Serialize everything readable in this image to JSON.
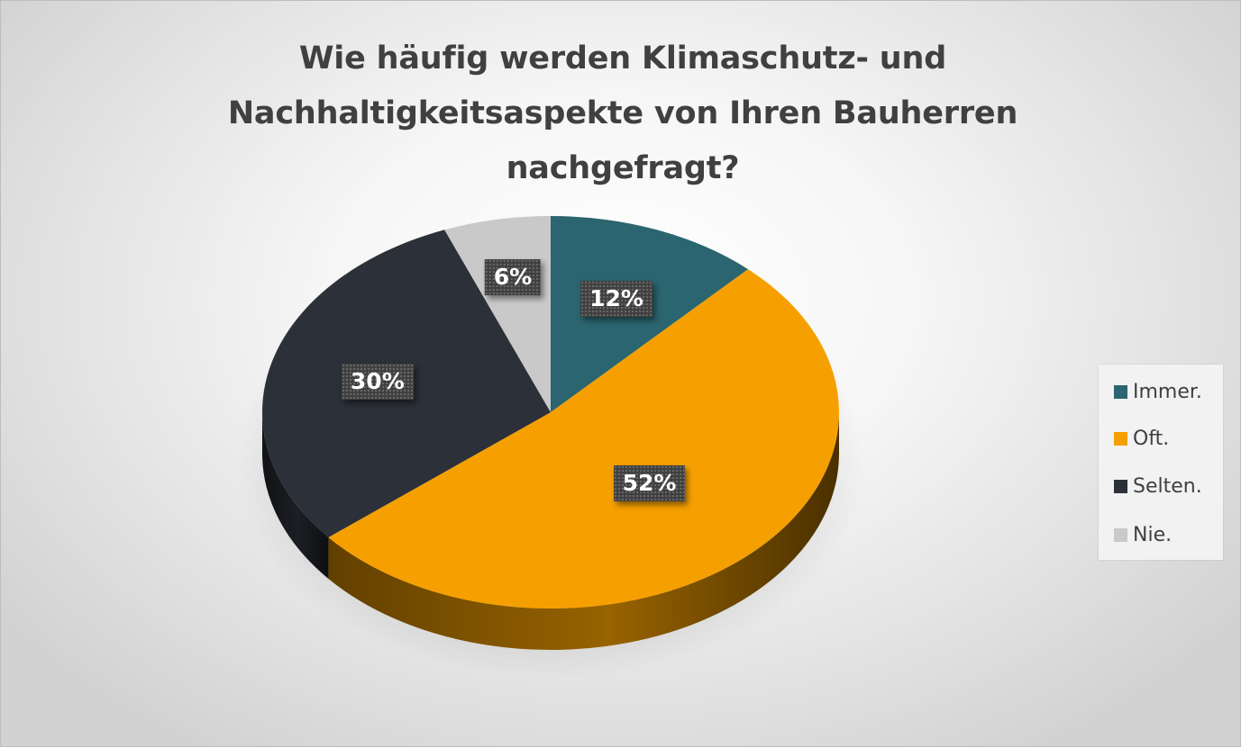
{
  "chart_data": {
    "type": "pie",
    "title": "Wie häufig werden Klimaschutz- und Nachhaltigkeitsaspekte von Ihren Bauherren nachgefragt?",
    "title_lines": [
      "Wie häufig werden Klimaschutz- und",
      "Nachhaltigkeitsaspekte von Ihren Bauherren",
      "nachgefragt?"
    ],
    "style": "3d",
    "legend_position": "right",
    "slices": [
      {
        "label": "Immer.",
        "value": 12,
        "display": "12%",
        "color": "#2b6570"
      },
      {
        "label": "Oft.",
        "value": 52,
        "display": "52%",
        "color": "#f5a000"
      },
      {
        "label": "Selten.",
        "value": 30,
        "display": "30%",
        "color": "#2c3038"
      },
      {
        "label": "Nie.",
        "value": 6,
        "display": "6%",
        "color": "#c9c9c9"
      }
    ]
  }
}
